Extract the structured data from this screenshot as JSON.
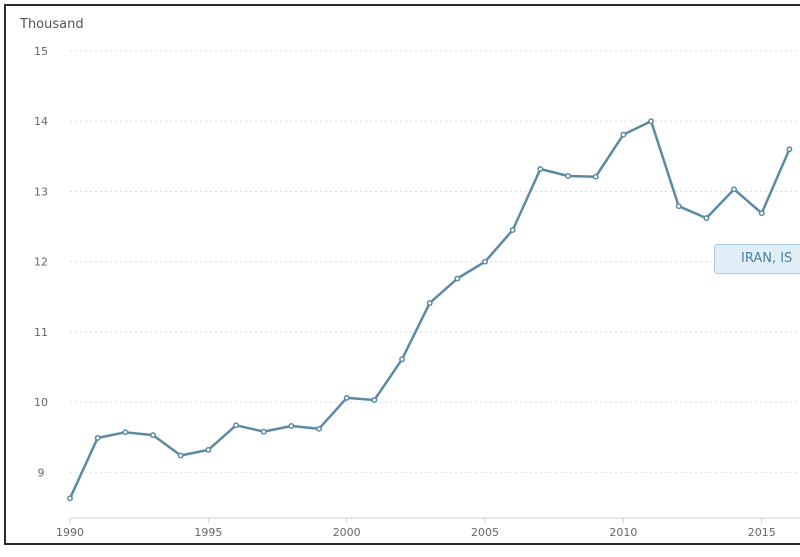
{
  "chart_data": {
    "type": "line",
    "unit_label": "Thousand",
    "x": [
      1990,
      1991,
      1992,
      1993,
      1994,
      1995,
      1996,
      1997,
      1998,
      1999,
      2000,
      2001,
      2002,
      2003,
      2004,
      2005,
      2006,
      2007,
      2008,
      2009,
      2010,
      2011,
      2012,
      2013,
      2014,
      2015,
      2016
    ],
    "series": [
      {
        "name": "IRAN, IS",
        "values": [
          8.63,
          9.49,
          9.57,
          9.53,
          9.24,
          9.32,
          9.67,
          9.58,
          9.66,
          9.62,
          10.06,
          10.03,
          10.61,
          11.41,
          11.76,
          12.0,
          12.45,
          13.32,
          13.22,
          13.21,
          13.81,
          14.0,
          12.79,
          12.62,
          13.03,
          12.69,
          13.6
        ]
      }
    ],
    "xticks": [
      "1990",
      "1995",
      "2000",
      "2005",
      "2010",
      "2015"
    ],
    "yticks": [
      "9",
      "10",
      "11",
      "12",
      "13",
      "14",
      "15"
    ],
    "xlim": [
      1990,
      2016.6
    ],
    "ylim": [
      8.35,
      15.0
    ],
    "grid": true,
    "colors": {
      "series": "#5b8aa3"
    }
  }
}
